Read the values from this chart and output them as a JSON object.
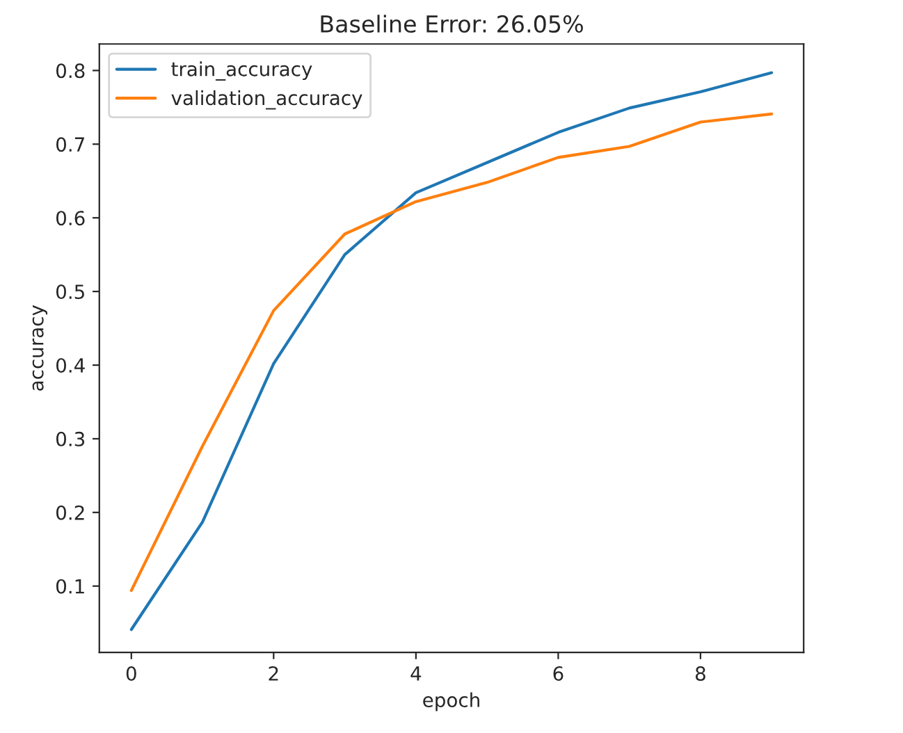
{
  "chart_data": {
    "type": "line",
    "title": "Baseline Error: 26.05%",
    "xlabel": "epoch",
    "ylabel": "accuracy",
    "x": [
      0,
      1,
      2,
      3,
      4,
      5,
      6,
      7,
      8,
      9
    ],
    "series": [
      {
        "name": "train_accuracy",
        "color": "#1f77b4",
        "values": [
          0.041,
          0.187,
          0.402,
          0.55,
          0.634,
          0.675,
          0.716,
          0.749,
          0.771,
          0.797
        ]
      },
      {
        "name": "validation_accuracy",
        "color": "#ff7f0e",
        "values": [
          0.094,
          0.29,
          0.474,
          0.578,
          0.622,
          0.648,
          0.682,
          0.697,
          0.73,
          0.741
        ]
      }
    ],
    "xlim": [
      -0.45,
      9.45
    ],
    "ylim": [
      0.01,
      0.836
    ],
    "xticks": [
      0,
      2,
      4,
      6,
      8
    ],
    "yticks": [
      0.1,
      0.2,
      0.3,
      0.4,
      0.5,
      0.6,
      0.7,
      0.8
    ],
    "grid": false,
    "legend": "top left",
    "marker": "none",
    "line_style": "solid"
  }
}
